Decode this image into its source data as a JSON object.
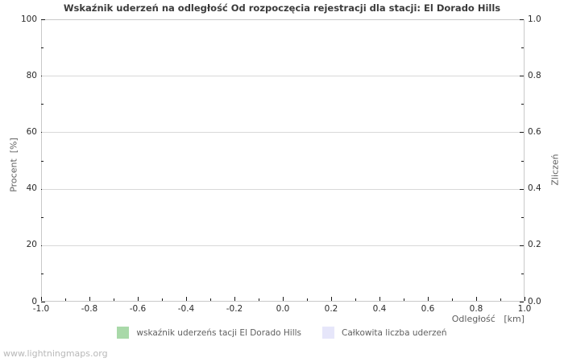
{
  "title": "Wskaźnik uderzeń na odległość Od rozpoczęcia rejestracji dla stacji: El Dorado Hills",
  "watermark": "www.lightningmaps.org",
  "chart_data": {
    "type": "bar",
    "title": "Wskaźnik uderzeń na odległość Od rozpoczęcia rejestracji dla stacji: El Dorado Hills",
    "grid": "horizontal-major-only",
    "legend_position": "bottom-center",
    "plot_empty": true,
    "left_axis": {
      "label": "Procent  [%]",
      "range": [
        0,
        100
      ],
      "ticks": [
        "100",
        "80",
        "60",
        "40",
        "20",
        "0"
      ],
      "minor_ticks": [
        10,
        30,
        50,
        70,
        90
      ]
    },
    "right_axis": {
      "label": "Zliczeń",
      "range": [
        0,
        1
      ],
      "ticks": [
        "1.0",
        "0.8",
        "0.6",
        "0.4",
        "0.2",
        "0.0"
      ],
      "minor_ticks": [
        0.1,
        0.3,
        0.5,
        0.7,
        0.9
      ]
    },
    "x_axis": {
      "label": "Odległość   [km]",
      "range": [
        -1,
        1
      ],
      "ticks": [
        "-1.0",
        "-0.8",
        "-0.6",
        "-0.4",
        "-0.2",
        "0.0",
        "0.2",
        "0.4",
        "0.6",
        "0.8",
        "1.0"
      ],
      "minor_ticks": [
        -0.9,
        -0.7,
        -0.5,
        -0.3,
        -0.1,
        0.1,
        0.3,
        0.5,
        0.7,
        0.9
      ]
    },
    "series": [
      {
        "name": "wskaźnik uderzeńs tacji El Dorado Hills",
        "color": "#a9d9a9",
        "axis": "left",
        "x": [],
        "values": []
      },
      {
        "name": "Całkowita liczba uderzeń",
        "color": "#e6e6fa",
        "axis": "right",
        "x": [],
        "values": []
      }
    ]
  }
}
